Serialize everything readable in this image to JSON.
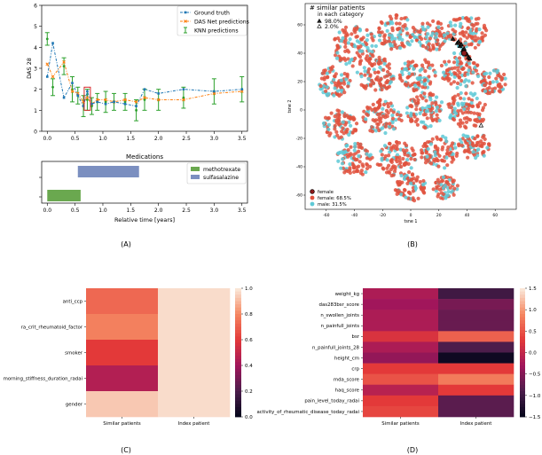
{
  "panels": {
    "a": "(A)",
    "b": "(B)",
    "c": "(C)",
    "d": "(D)"
  },
  "colors": {
    "ground_truth": "#1f77b4",
    "das_net": "#ff7f0e",
    "knn": "#2ca02c",
    "highlight": "#d62728",
    "methotrexate": "#6aa84f",
    "sulfasalazine": "#7b8fc0",
    "female": "#e0523e",
    "male": "#5ec9d6"
  },
  "chart_data": [
    {
      "id": "das28",
      "type": "line",
      "ylabel": "DAS 28",
      "xlabel": "",
      "xlim": [
        -0.1,
        3.6
      ],
      "ylim": [
        0,
        6
      ],
      "xticks": [
        0.0,
        0.5,
        1.0,
        1.5,
        2.0,
        2.5,
        3.0,
        3.5
      ],
      "yticks": [
        0,
        1,
        2,
        3,
        4,
        5,
        6
      ],
      "series": [
        {
          "name": "Ground truth",
          "style": "dash-dot-square",
          "x": [
            0.0,
            0.1,
            0.3,
            0.45,
            0.55,
            0.65,
            0.72,
            0.8,
            0.9,
            1.05,
            1.2,
            1.4,
            1.6,
            1.75,
            2.0,
            2.45,
            3.0,
            3.5
          ],
          "y": [
            2.6,
            4.2,
            1.6,
            2.3,
            1.7,
            1.2,
            1.9,
            1.3,
            1.4,
            1.3,
            1.4,
            1.3,
            1.2,
            2.0,
            1.8,
            2.0,
            1.9,
            2.0
          ]
        },
        {
          "name": "DAS Net predictions",
          "style": "dash-dot-x",
          "x": [
            0.0,
            0.1,
            0.3,
            0.45,
            0.55,
            0.65,
            0.72,
            0.8,
            0.9,
            1.05,
            1.2,
            1.4,
            1.6,
            1.75,
            2.0,
            2.45,
            3.0,
            3.5
          ],
          "y": [
            3.2,
            2.6,
            3.3,
            1.9,
            1.8,
            1.4,
            1.6,
            1.3,
            1.5,
            1.5,
            1.4,
            1.5,
            1.4,
            1.6,
            1.5,
            1.5,
            1.8,
            1.9
          ]
        },
        {
          "name": "KNN predictions",
          "style": "errorbar",
          "x": [
            0.0,
            0.1,
            0.3,
            0.45,
            0.55,
            0.65,
            0.72,
            0.8,
            0.9,
            1.05,
            1.2,
            1.4,
            1.6,
            1.75,
            2.0,
            2.45,
            3.0,
            3.5
          ],
          "y": [
            4.4,
            2.1,
            3.1,
            2.0,
            1.7,
            1.2,
            1.5,
            1.2,
            1.4,
            1.4,
            1.4,
            1.4,
            1.0,
            1.5,
            1.5,
            1.6,
            1.9,
            2.0
          ],
          "err": [
            0.3,
            0.4,
            0.4,
            0.6,
            0.4,
            0.5,
            0.5,
            0.4,
            0.4,
            0.5,
            0.4,
            0.4,
            0.5,
            0.5,
            0.5,
            0.5,
            0.6,
            0.6
          ]
        }
      ],
      "highlight_x": 0.72,
      "legend": "top-right"
    },
    {
      "id": "medications",
      "type": "gantt",
      "title": "Medications",
      "xlabel": "Relative time [years]",
      "xlim": [
        -0.1,
        3.6
      ],
      "xticks": [
        0.0,
        0.5,
        1.0,
        1.5,
        2.0,
        2.5,
        3.0,
        3.5
      ],
      "bars": [
        {
          "name": "methotrexate",
          "start": 0.0,
          "end": 0.6,
          "row": 0
        },
        {
          "name": "sulfasalazine",
          "start": 0.55,
          "end": 1.65,
          "row": 1
        }
      ],
      "legend": "top-right"
    },
    {
      "id": "tsne",
      "type": "scatter",
      "xlabel": "tsne 1",
      "ylabel": "tsne 2",
      "xlim": [
        -75,
        75
      ],
      "ylim": [
        -70,
        75
      ],
      "xticks": [
        -60,
        -40,
        -20,
        0,
        20,
        40,
        60
      ],
      "yticks": [
        -60,
        -40,
        -20,
        0,
        20,
        40,
        60
      ],
      "top_legend_title": "# similar patients\nin each category",
      "top_legend": [
        {
          "label": "98.0%",
          "marker": "triangle-filled"
        },
        {
          "label": "2.0%",
          "marker": "triangle-open"
        }
      ],
      "bottom_legend": [
        {
          "label": "female",
          "marker": "index"
        },
        {
          "label": "female: 68.5%",
          "marker": "female"
        },
        {
          "label": "male: 31.5%",
          "marker": "male"
        }
      ],
      "similar_points": [
        [
          30,
          50
        ],
        [
          33,
          47
        ],
        [
          35,
          45
        ],
        [
          37,
          42
        ],
        [
          39,
          40
        ],
        [
          41,
          37
        ],
        [
          34,
          48
        ],
        [
          38,
          43
        ],
        [
          40,
          39
        ],
        [
          42,
          36
        ],
        [
          36,
          46
        ],
        [
          50,
          -11
        ]
      ],
      "index_point": [
        38,
        40
      ]
    },
    {
      "id": "heatmap_c",
      "type": "heatmap",
      "rows": [
        "anti_ccp",
        "ra_crit_rheumatoid_factor",
        "smoker",
        "morning_stiffness_duration_radai",
        "gender"
      ],
      "cols": [
        "Similar patients",
        "Index patient"
      ],
      "values": [
        [
          0.72,
          0.97
        ],
        [
          0.78,
          0.97
        ],
        [
          0.6,
          0.97
        ],
        [
          0.45,
          0.97
        ],
        [
          0.93,
          0.97
        ]
      ],
      "vmin": 0.0,
      "vmax": 1.0,
      "colorbar_ticks": [
        0.0,
        0.2,
        0.4,
        0.6,
        0.8,
        1.0
      ]
    },
    {
      "id": "heatmap_d",
      "type": "heatmap",
      "rows": [
        "weight_kg",
        "das283bsr_score",
        "n_swollen_joints",
        "n_painfull_joints",
        "bsr",
        "n_painfull_joints_28",
        "height_cm",
        "crp",
        "mda_score",
        "haq_score",
        "pain_level_today_radai",
        "activity_of_rheumatic_disease_today_radai"
      ],
      "cols": [
        "Similar patients",
        "Index patient"
      ],
      "values": [
        [
          -0.2,
          -1.0
        ],
        [
          -0.3,
          -0.6
        ],
        [
          -0.2,
          -0.7
        ],
        [
          -0.2,
          -0.7
        ],
        [
          0.2,
          0.6
        ],
        [
          -0.2,
          -0.9
        ],
        [
          -0.4,
          -1.4
        ],
        [
          0.3,
          0.3
        ],
        [
          0.5,
          0.8
        ],
        [
          -0.1,
          0.3
        ],
        [
          0.3,
          -0.8
        ],
        [
          0.4,
          -0.8
        ]
      ],
      "vmin": -1.5,
      "vmax": 1.5,
      "colorbar_ticks": [
        1.5,
        1.0,
        0.5,
        0.0,
        -0.5,
        -1.0,
        -1.5
      ]
    }
  ]
}
